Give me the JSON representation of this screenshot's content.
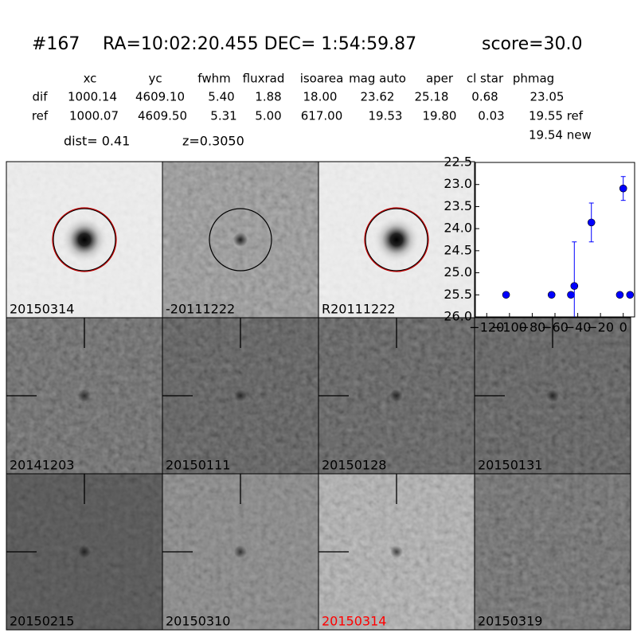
{
  "header": {
    "id": "#167",
    "coords": "RA=10:02:20.455 DEC= 1:54:59.87",
    "score": "score=30.0"
  },
  "table": {
    "columns": [
      "xc",
      "yc",
      "fwhm",
      "fluxrad",
      "isoarea",
      "mag auto",
      "aper",
      "cl star",
      "phmag"
    ],
    "rows": [
      [
        "dif",
        "1000.14",
        "4609.10",
        "5.40",
        "1.88",
        "18.00",
        "23.62",
        "25.18",
        "0.68",
        "23.05"
      ],
      [
        "ref",
        "1000.07",
        "4609.50",
        "5.31",
        "5.00",
        "617.00",
        "19.53",
        "19.80",
        "0.03",
        "19.55 ref"
      ]
    ],
    "extra": "19.54 new"
  },
  "dist": "dist=  0.41",
  "redshift": "z=0.3050",
  "stamps": [
    {
      "label": "20150314"
    },
    {
      "label": "-20111222"
    },
    {
      "label": "R20111222"
    },
    {
      "label": "20141203"
    },
    {
      "label": "20150111"
    },
    {
      "label": "20150128"
    },
    {
      "label": "20150131"
    },
    {
      "label": "20150215"
    },
    {
      "label": "20150310"
    },
    {
      "label": "20150314",
      "label_color": "#ff0000"
    },
    {
      "label": "20150319"
    }
  ],
  "chart_data": {
    "type": "scatter",
    "color": "#0000ff",
    "x": [
      -103,
      -63,
      -46,
      -43,
      -28,
      -3,
      0,
      6
    ],
    "values": [
      25.5,
      25.5,
      25.5,
      25.3,
      23.86,
      25.5,
      23.09,
      25.5
    ],
    "errors": [
      null,
      null,
      null,
      1.0,
      0.44,
      null,
      0.27,
      null
    ],
    "xlim": [
      -130,
      10
    ],
    "xticks": [
      {
        "value": -120,
        "label": "−120"
      },
      {
        "value": -100,
        "label": "−100"
      },
      {
        "value": -80,
        "label": "−80"
      },
      {
        "value": -60,
        "label": "−60"
      },
      {
        "value": -40,
        "label": "−40"
      },
      {
        "value": -20,
        "label": "−20"
      },
      0
    ],
    "ylim": [
      26.0,
      22.5
    ],
    "yticks": [
      22.5,
      {
        "value": 23,
        "label": "23.0"
      },
      23.5,
      {
        "value": 24,
        "label": "24.0"
      },
      24.5,
      {
        "value": 25,
        "label": "25.0"
      },
      25.5,
      {
        "value": 26,
        "label": "26.0"
      }
    ]
  }
}
